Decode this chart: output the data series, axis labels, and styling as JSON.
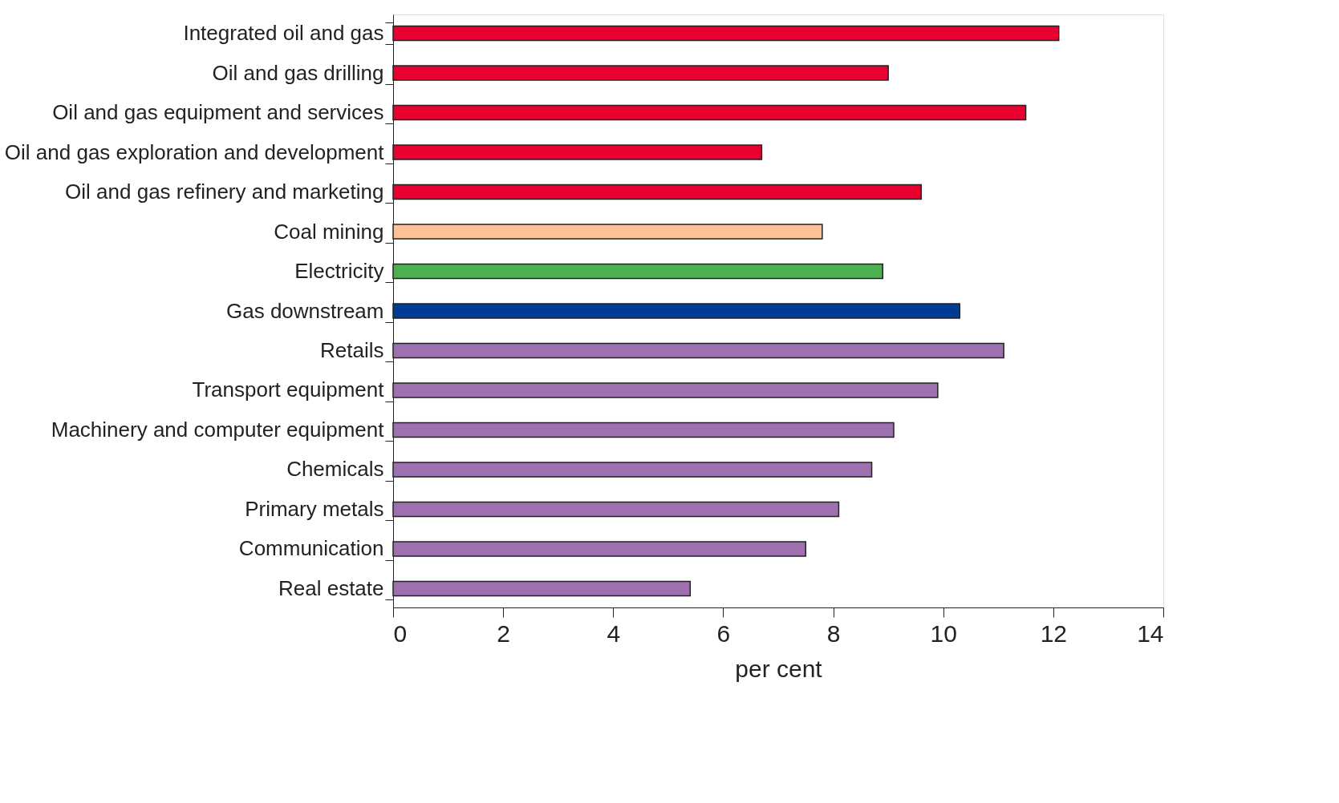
{
  "chart_data": {
    "type": "bar",
    "orientation": "horizontal",
    "xlabel": "per cent",
    "categories": [
      "Integrated oil and gas",
      "Oil and gas drilling",
      "Oil and gas equipment and services",
      "Oil and gas exploration and development",
      "Oil and gas refinery and marketing",
      "Coal mining",
      "Electricity",
      "Gas downstream",
      "Retails",
      "Transport equipment",
      "Machinery and computer equipment",
      "Chemicals",
      "Primary metals",
      "Communication",
      "Real estate"
    ],
    "values": [
      12.1,
      9.0,
      11.5,
      6.7,
      9.6,
      7.8,
      8.9,
      10.3,
      11.1,
      9.9,
      9.1,
      8.7,
      8.1,
      7.5,
      5.4
    ],
    "colors": [
      "#e8002e",
      "#e8002e",
      "#e8002e",
      "#e8002e",
      "#e8002e",
      "#fcc295",
      "#4caf50",
      "#003c96",
      "#9e70b0",
      "#9e70b0",
      "#9e70b0",
      "#9e70b0",
      "#9e70b0",
      "#9e70b0",
      "#9e70b0"
    ],
    "xlim": [
      0,
      14
    ],
    "xticks": [
      0,
      2,
      4,
      6,
      8,
      10,
      12,
      14
    ],
    "grid": false
  }
}
